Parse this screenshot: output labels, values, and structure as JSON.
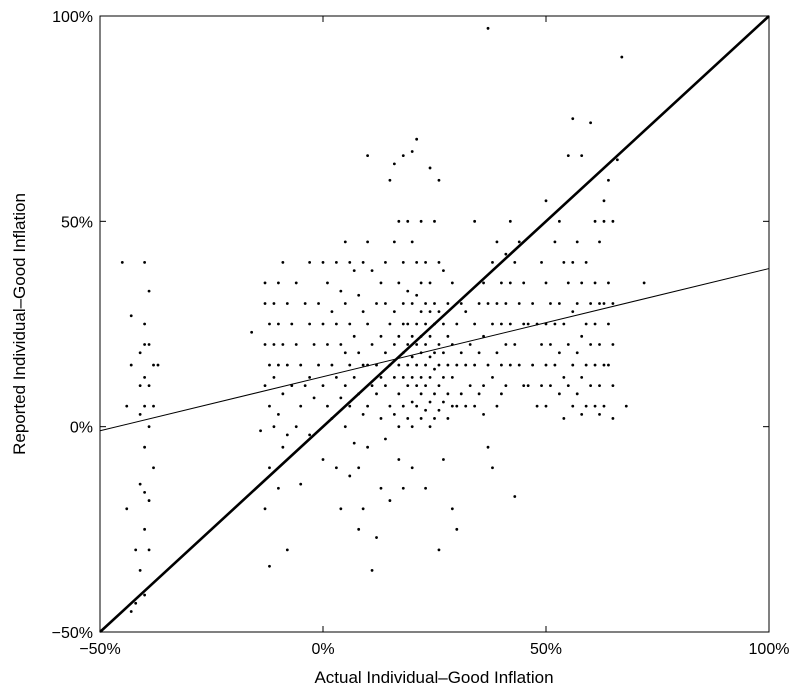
{
  "chart_data": {
    "type": "scatter",
    "title": "",
    "xlabel": "Actual Individual–Good Inflation",
    "ylabel": "Reported Individual–Good Inflation",
    "xlim": [
      -50,
      100
    ],
    "ylim": [
      -50,
      100
    ],
    "x_ticks": [
      -50,
      0,
      50,
      100
    ],
    "y_ticks": [
      -50,
      0,
      50,
      100
    ],
    "x_tick_labels": [
      "−50%",
      "0%",
      "50%",
      "100%"
    ],
    "y_tick_labels": [
      "−50%",
      "0%",
      "50%",
      "100%"
    ],
    "grid": false,
    "lines": [
      {
        "kind": "45-degree line",
        "style": "thick",
        "x": [
          -50,
          100
        ],
        "y": [
          -50,
          100
        ]
      },
      {
        "kind": "fitted line",
        "style": "thin",
        "x": [
          -50,
          100
        ],
        "y": [
          -1,
          38.5
        ]
      }
    ],
    "points": [
      [
        -45,
        40
      ],
      [
        -44,
        5
      ],
      [
        -43,
        27
      ],
      [
        -43,
        15
      ],
      [
        -42,
        -30
      ],
      [
        -42,
        -43
      ],
      [
        -41,
        18
      ],
      [
        -41,
        10
      ],
      [
        -41,
        3
      ],
      [
        -41,
        -14
      ],
      [
        -41,
        -35
      ],
      [
        -40,
        40
      ],
      [
        -40,
        25
      ],
      [
        -40,
        20
      ],
      [
        -40,
        12
      ],
      [
        -40,
        5
      ],
      [
        -40,
        -5
      ],
      [
        -40,
        -16
      ],
      [
        -40,
        -25
      ],
      [
        -40,
        -41
      ],
      [
        -39,
        33
      ],
      [
        -39,
        20
      ],
      [
        -39,
        10
      ],
      [
        -39,
        0
      ],
      [
        -39,
        -18
      ],
      [
        -39,
        -30
      ],
      [
        -38,
        15
      ],
      [
        -38,
        5
      ],
      [
        -38,
        -10
      ],
      [
        -37,
        15
      ],
      [
        -44,
        -20
      ],
      [
        -43,
        -45
      ],
      [
        -16,
        23
      ],
      [
        -14,
        -1
      ],
      [
        -13,
        35
      ],
      [
        -13,
        30
      ],
      [
        -13,
        20
      ],
      [
        -13,
        10
      ],
      [
        -13,
        -20
      ],
      [
        -12,
        25
      ],
      [
        -12,
        15
      ],
      [
        -12,
        5
      ],
      [
        -12,
        -10
      ],
      [
        -12,
        -34
      ],
      [
        -11,
        30
      ],
      [
        -11,
        20
      ],
      [
        -11,
        12
      ],
      [
        -11,
        0
      ],
      [
        -10,
        35
      ],
      [
        -10,
        25
      ],
      [
        -10,
        15
      ],
      [
        -10,
        3
      ],
      [
        -10,
        -15
      ],
      [
        -9,
        40
      ],
      [
        -9,
        20
      ],
      [
        -9,
        8
      ],
      [
        -9,
        -5
      ],
      [
        -8,
        30
      ],
      [
        -8,
        15
      ],
      [
        -8,
        -2
      ],
      [
        -8,
        -30
      ],
      [
        -7,
        25
      ],
      [
        -7,
        10
      ],
      [
        -6,
        35
      ],
      [
        -6,
        20
      ],
      [
        -6,
        0
      ],
      [
        -5,
        15
      ],
      [
        -5,
        5
      ],
      [
        -5,
        -14
      ],
      [
        -4,
        30
      ],
      [
        -4,
        10
      ],
      [
        -3,
        40
      ],
      [
        -3,
        25
      ],
      [
        -3,
        12
      ],
      [
        -3,
        -2
      ],
      [
        -2,
        20
      ],
      [
        -2,
        7
      ],
      [
        -1,
        30
      ],
      [
        -1,
        15
      ],
      [
        0,
        40
      ],
      [
        0,
        25
      ],
      [
        0,
        10
      ],
      [
        0,
        -8
      ],
      [
        1,
        35
      ],
      [
        1,
        20
      ],
      [
        1,
        5
      ],
      [
        2,
        28
      ],
      [
        2,
        15
      ],
      [
        2,
        2
      ],
      [
        3,
        40
      ],
      [
        3,
        25
      ],
      [
        3,
        12
      ],
      [
        3,
        -10
      ],
      [
        4,
        33
      ],
      [
        4,
        20
      ],
      [
        4,
        7
      ],
      [
        4,
        -20
      ],
      [
        5,
        45
      ],
      [
        5,
        30
      ],
      [
        5,
        18
      ],
      [
        5,
        10
      ],
      [
        5,
        0
      ],
      [
        6,
        40
      ],
      [
        6,
        25
      ],
      [
        6,
        15
      ],
      [
        6,
        5
      ],
      [
        6,
        -12
      ],
      [
        7,
        38
      ],
      [
        7,
        22
      ],
      [
        7,
        12
      ],
      [
        7,
        -4
      ],
      [
        8,
        32
      ],
      [
        8,
        18
      ],
      [
        8,
        8
      ],
      [
        8,
        -10
      ],
      [
        8,
        -25
      ],
      [
        9,
        40
      ],
      [
        9,
        28
      ],
      [
        9,
        15
      ],
      [
        9,
        3
      ],
      [
        9,
        -20
      ],
      [
        10,
        66
      ],
      [
        10,
        45
      ],
      [
        10,
        25
      ],
      [
        10,
        15
      ],
      [
        10,
        5
      ],
      [
        10,
        -5
      ],
      [
        11,
        38
      ],
      [
        11,
        20
      ],
      [
        11,
        10
      ],
      [
        11,
        -35
      ],
      [
        12,
        30
      ],
      [
        12,
        15
      ],
      [
        12,
        8
      ],
      [
        12,
        -27
      ],
      [
        13,
        35
      ],
      [
        13,
        22
      ],
      [
        13,
        12
      ],
      [
        13,
        2
      ],
      [
        13,
        -15
      ],
      [
        14,
        40
      ],
      [
        14,
        30
      ],
      [
        14,
        18
      ],
      [
        14,
        10
      ],
      [
        14,
        -3
      ],
      [
        15,
        60
      ],
      [
        15,
        25
      ],
      [
        15,
        15
      ],
      [
        15,
        5
      ],
      [
        15,
        -18
      ],
      [
        16,
        64
      ],
      [
        16,
        45
      ],
      [
        16,
        28
      ],
      [
        16,
        20
      ],
      [
        16,
        12
      ],
      [
        16,
        3
      ],
      [
        17,
        50
      ],
      [
        17,
        35
      ],
      [
        17,
        22
      ],
      [
        17,
        15
      ],
      [
        17,
        8
      ],
      [
        17,
        0
      ],
      [
        17,
        -8
      ],
      [
        18,
        66
      ],
      [
        18,
        40
      ],
      [
        18,
        30
      ],
      [
        18,
        25
      ],
      [
        18,
        18
      ],
      [
        18,
        12
      ],
      [
        18,
        5
      ],
      [
        18,
        -15
      ],
      [
        19,
        50
      ],
      [
        19,
        33
      ],
      [
        19,
        25
      ],
      [
        19,
        20
      ],
      [
        19,
        15
      ],
      [
        19,
        10
      ],
      [
        19,
        2
      ],
      [
        20,
        67
      ],
      [
        20,
        45
      ],
      [
        20,
        30
      ],
      [
        20,
        22
      ],
      [
        20,
        17
      ],
      [
        20,
        12
      ],
      [
        20,
        6
      ],
      [
        20,
        0
      ],
      [
        20,
        -10
      ],
      [
        21,
        70
      ],
      [
        21,
        40
      ],
      [
        21,
        32
      ],
      [
        21,
        25
      ],
      [
        21,
        20
      ],
      [
        21,
        15
      ],
      [
        21,
        10
      ],
      [
        21,
        5
      ],
      [
        22,
        50
      ],
      [
        22,
        35
      ],
      [
        22,
        28
      ],
      [
        22,
        22
      ],
      [
        22,
        18
      ],
      [
        22,
        12
      ],
      [
        22,
        8
      ],
      [
        22,
        2
      ],
      [
        23,
        40
      ],
      [
        23,
        30
      ],
      [
        23,
        25
      ],
      [
        23,
        20
      ],
      [
        23,
        15
      ],
      [
        23,
        10
      ],
      [
        23,
        4
      ],
      [
        23,
        -15
      ],
      [
        24,
        63
      ],
      [
        24,
        35
      ],
      [
        24,
        28
      ],
      [
        24,
        22
      ],
      [
        24,
        17
      ],
      [
        24,
        12
      ],
      [
        24,
        6
      ],
      [
        24,
        0
      ],
      [
        25,
        50
      ],
      [
        25,
        30
      ],
      [
        25,
        25
      ],
      [
        25,
        18
      ],
      [
        25,
        14
      ],
      [
        25,
        8
      ],
      [
        25,
        2
      ],
      [
        26,
        60
      ],
      [
        26,
        40
      ],
      [
        26,
        28
      ],
      [
        26,
        20
      ],
      [
        26,
        15
      ],
      [
        26,
        10
      ],
      [
        26,
        4
      ],
      [
        26,
        -30
      ],
      [
        27,
        38
      ],
      [
        27,
        25
      ],
      [
        27,
        18
      ],
      [
        27,
        12
      ],
      [
        27,
        6
      ],
      [
        27,
        -8
      ],
      [
        28,
        30
      ],
      [
        28,
        22
      ],
      [
        28,
        15
      ],
      [
        28,
        8
      ],
      [
        28,
        2
      ],
      [
        29,
        35
      ],
      [
        29,
        20
      ],
      [
        29,
        12
      ],
      [
        29,
        5
      ],
      [
        29,
        -20
      ],
      [
        30,
        25
      ],
      [
        30,
        15
      ],
      [
        30,
        5
      ],
      [
        30,
        -25
      ],
      [
        31,
        30
      ],
      [
        31,
        18
      ],
      [
        31,
        8
      ],
      [
        32,
        28
      ],
      [
        32,
        15
      ],
      [
        32,
        5
      ],
      [
        33,
        20
      ],
      [
        33,
        10
      ],
      [
        34,
        50
      ],
      [
        34,
        25
      ],
      [
        34,
        15
      ],
      [
        34,
        5
      ],
      [
        35,
        30
      ],
      [
        35,
        18
      ],
      [
        35,
        8
      ],
      [
        36,
        35
      ],
      [
        36,
        22
      ],
      [
        36,
        10
      ],
      [
        36,
        3
      ],
      [
        37,
        97
      ],
      [
        37,
        30
      ],
      [
        37,
        15
      ],
      [
        37,
        -5
      ],
      [
        38,
        40
      ],
      [
        38,
        25
      ],
      [
        38,
        12
      ],
      [
        38,
        -10
      ],
      [
        39,
        45
      ],
      [
        39,
        30
      ],
      [
        39,
        18
      ],
      [
        39,
        5
      ],
      [
        40,
        35
      ],
      [
        40,
        25
      ],
      [
        40,
        15
      ],
      [
        40,
        8
      ],
      [
        41,
        42
      ],
      [
        41,
        30
      ],
      [
        41,
        20
      ],
      [
        41,
        10
      ],
      [
        42,
        50
      ],
      [
        42,
        35
      ],
      [
        42,
        25
      ],
      [
        42,
        15
      ],
      [
        43,
        40
      ],
      [
        43,
        20
      ],
      [
        43,
        -17
      ],
      [
        44,
        45
      ],
      [
        44,
        30
      ],
      [
        44,
        15
      ],
      [
        45,
        35
      ],
      [
        45,
        25
      ],
      [
        45,
        10
      ],
      [
        46,
        25
      ],
      [
        46,
        10
      ],
      [
        47,
        30
      ],
      [
        47,
        15
      ],
      [
        48,
        25
      ],
      [
        48,
        5
      ],
      [
        49,
        40
      ],
      [
        49,
        20
      ],
      [
        49,
        10
      ],
      [
        50,
        55
      ],
      [
        50,
        35
      ],
      [
        50,
        25
      ],
      [
        50,
        15
      ],
      [
        50,
        5
      ],
      [
        51,
        30
      ],
      [
        51,
        20
      ],
      [
        51,
        10
      ],
      [
        52,
        45
      ],
      [
        52,
        25
      ],
      [
        52,
        15
      ],
      [
        53,
        50
      ],
      [
        53,
        30
      ],
      [
        53,
        18
      ],
      [
        53,
        8
      ],
      [
        54,
        40
      ],
      [
        54,
        25
      ],
      [
        54,
        12
      ],
      [
        54,
        2
      ],
      [
        55,
        66
      ],
      [
        55,
        35
      ],
      [
        55,
        20
      ],
      [
        55,
        10
      ],
      [
        56,
        75
      ],
      [
        56,
        40
      ],
      [
        56,
        28
      ],
      [
        56,
        15
      ],
      [
        56,
        5
      ],
      [
        57,
        45
      ],
      [
        57,
        30
      ],
      [
        57,
        18
      ],
      [
        57,
        8
      ],
      [
        58,
        66
      ],
      [
        58,
        35
      ],
      [
        58,
        22
      ],
      [
        58,
        12
      ],
      [
        58,
        3
      ],
      [
        59,
        40
      ],
      [
        59,
        25
      ],
      [
        59,
        15
      ],
      [
        59,
        5
      ],
      [
        60,
        74
      ],
      [
        60,
        30
      ],
      [
        60,
        20
      ],
      [
        60,
        10
      ],
      [
        61,
        50
      ],
      [
        61,
        35
      ],
      [
        61,
        25
      ],
      [
        61,
        15
      ],
      [
        61,
        5
      ],
      [
        62,
        45
      ],
      [
        62,
        30
      ],
      [
        62,
        20
      ],
      [
        62,
        10
      ],
      [
        62,
        3
      ],
      [
        63,
        55
      ],
      [
        63,
        50
      ],
      [
        63,
        30
      ],
      [
        63,
        15
      ],
      [
        63,
        5
      ],
      [
        64,
        60
      ],
      [
        64,
        35
      ],
      [
        64,
        25
      ],
      [
        64,
        15
      ],
      [
        65,
        50
      ],
      [
        65,
        30
      ],
      [
        65,
        20
      ],
      [
        65,
        10
      ],
      [
        65,
        2
      ],
      [
        66,
        65
      ],
      [
        67,
        90
      ],
      [
        68,
        5
      ],
      [
        72,
        35
      ]
    ]
  }
}
